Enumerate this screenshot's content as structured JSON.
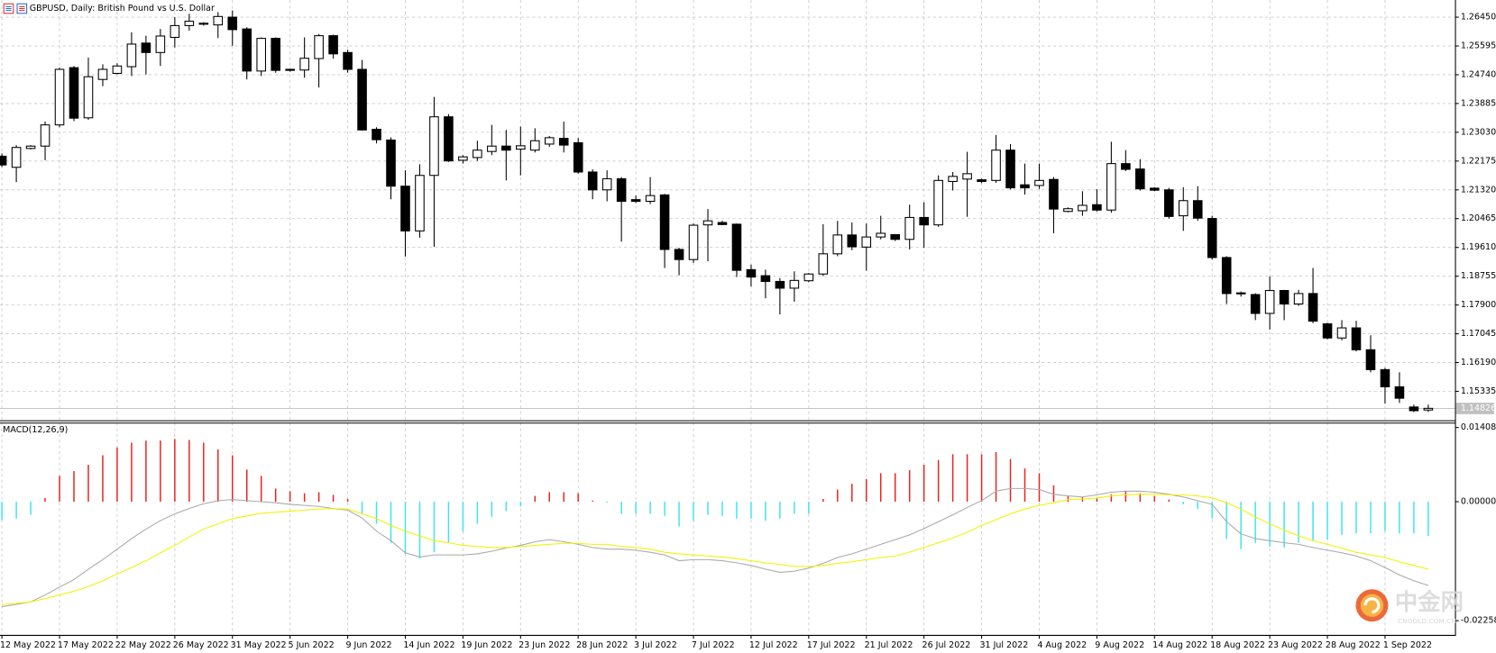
{
  "chart_data": [
    {
      "type": "candlestick",
      "title": "GBPUSD, Daily:  British Pound vs U.S. Dollar",
      "categories": [
        "12 May 2022",
        null,
        null,
        null,
        "17 May 2022",
        null,
        null,
        null,
        "22 May 2022",
        null,
        null,
        null,
        "26 May 2022",
        null,
        null,
        null,
        "31 May 2022",
        null,
        null,
        null,
        "5 Jun 2022",
        null,
        null,
        null,
        "9 Jun 2022",
        null,
        null,
        null,
        "14 Jun 2022",
        null,
        null,
        null,
        "19 Jun 2022",
        null,
        null,
        null,
        "23 Jun 2022",
        null,
        null,
        null,
        "28 Jun 2022",
        null,
        null,
        null,
        "3 Jul 2022",
        null,
        null,
        null,
        "7 Jul 2022",
        null,
        null,
        null,
        "12 Jul 2022",
        null,
        null,
        null,
        "17 Jul 2022",
        null,
        null,
        null,
        "21 Jul 2022",
        null,
        null,
        null,
        "26 Jul 2022",
        null,
        null,
        null,
        "31 Jul 2022",
        null,
        null,
        null,
        "4 Aug 2022",
        null,
        null,
        null,
        "9 Aug 2022",
        null,
        null,
        null,
        "14 Aug 2022",
        null,
        null,
        null,
        "18 Aug 2022",
        null,
        null,
        null,
        "23 Aug 2022",
        null,
        null,
        null,
        "28 Aug 2022",
        null,
        null,
        null,
        "1 Sep 2022",
        null,
        null,
        null
      ],
      "open": [
        1.2232,
        1.2199,
        1.2255,
        1.2262,
        1.2325,
        1.2495,
        1.2346,
        1.246,
        1.2478,
        1.2498,
        1.2568,
        1.254,
        1.2585,
        1.262,
        1.2624,
        1.2622,
        1.2645,
        1.261,
        1.2485,
        1.2582,
        1.249,
        1.2488,
        1.2522,
        1.259,
        1.254,
        1.249,
        1.2312,
        1.228,
        1.2143,
        1.201,
        1.2175,
        1.2349,
        1.222,
        1.2228,
        1.2246,
        1.2262,
        1.2253,
        1.225,
        1.2268,
        1.2285,
        1.2272,
        1.2185,
        1.2132,
        1.2165,
        1.2103,
        1.2098,
        1.2117,
        1.1955,
        1.1925,
        1.2028,
        1.2035,
        1.203,
        1.1895,
        1.1877,
        1.186,
        1.184,
        1.1862,
        1.1882,
        1.1942,
        1.1998,
        1.1962,
        1.1992,
        1.1999,
        1.1985,
        1.205,
        1.2028,
        1.2157,
        1.2164,
        1.2162,
        1.216,
        1.225,
        1.2147,
        1.2145,
        1.2163,
        1.2068,
        1.207,
        1.2088,
        1.2072,
        1.221,
        1.2194,
        1.2137,
        1.2132,
        1.2055,
        1.21,
        1.2047,
        1.1931,
        1.1826,
        1.1821,
        1.1765,
        1.1833,
        1.1793,
        1.1824,
        1.1734,
        1.1692,
        1.1722,
        1.1657,
        1.1598,
        1.1547,
        1.1487,
        1.1478
      ],
      "high": [
        1.224,
        1.2265,
        1.2265,
        1.2335,
        1.2495,
        1.25,
        1.2525,
        1.2505,
        1.2508,
        1.26,
        1.259,
        1.261,
        1.2645,
        1.2655,
        1.263,
        1.266,
        1.2665,
        1.2615,
        1.2585,
        1.2585,
        1.2492,
        1.2585,
        1.2595,
        1.2593,
        1.2548,
        1.2518,
        1.2318,
        1.2288,
        1.219,
        1.2208,
        1.2408,
        1.2357,
        1.2235,
        1.2278,
        1.2325,
        1.231,
        1.232,
        1.2315,
        1.2292,
        1.2335,
        1.2286,
        1.2193,
        1.219,
        1.217,
        1.2115,
        1.217,
        1.212,
        1.196,
        1.2032,
        1.2075,
        1.204,
        1.2032,
        1.191,
        1.1895,
        1.187,
        1.189,
        1.1885,
        1.203,
        1.204,
        1.2035,
        1.2032,
        1.2055,
        1.2,
        1.2088,
        1.2095,
        1.2175,
        1.2185,
        1.2245,
        1.2165,
        1.2295,
        1.2268,
        1.221,
        1.221,
        1.217,
        1.208,
        1.2128,
        1.2134,
        1.2275,
        1.225,
        1.2223,
        1.214,
        1.2138,
        1.214,
        1.2143,
        1.2055,
        1.1935,
        1.183,
        1.1825,
        1.1875,
        1.1835,
        1.1835,
        1.19,
        1.1737,
        1.1745,
        1.1743,
        1.17,
        1.1603,
        1.159,
        1.1494,
        1.1494
      ],
      "low": [
        1.22,
        1.2155,
        1.2252,
        1.222,
        1.2318,
        1.2336,
        1.234,
        1.244,
        1.2475,
        1.247,
        1.2475,
        1.25,
        1.2555,
        1.2605,
        1.262,
        1.2583,
        1.256,
        1.246,
        1.247,
        1.248,
        1.2483,
        1.2465,
        1.2436,
        1.2522,
        1.248,
        1.2308,
        1.227,
        1.2104,
        1.1934,
        1.199,
        1.1963,
        1.2215,
        1.221,
        1.2218,
        1.2235,
        1.216,
        1.2175,
        1.2243,
        1.226,
        1.2243,
        1.218,
        1.2104,
        1.2098,
        1.1978,
        1.2093,
        1.209,
        1.19,
        1.1878,
        1.1915,
        1.192,
        1.2027,
        1.1873,
        1.1845,
        1.181,
        1.1762,
        1.18,
        1.1858,
        1.1876,
        1.1935,
        1.1953,
        1.1892,
        1.1985,
        1.198,
        1.1955,
        1.196,
        1.2022,
        1.213,
        1.2052,
        1.2152,
        1.2153,
        1.2133,
        1.2118,
        1.2135,
        1.2003,
        1.2065,
        1.2055,
        1.2068,
        1.2064,
        1.2188,
        1.213,
        1.2128,
        1.2047,
        1.201,
        1.204,
        1.1925,
        1.1793,
        1.1815,
        1.1745,
        1.1717,
        1.1745,
        1.1787,
        1.1736,
        1.1688,
        1.1685,
        1.1652,
        1.159,
        1.1497,
        1.1499,
        1.1472,
        1.1472
      ],
      "close": [
        1.2206,
        1.2258,
        1.2262,
        1.2325,
        1.249,
        1.2345,
        1.2468,
        1.249,
        1.25,
        1.2565,
        1.254,
        1.2589,
        1.262,
        1.2633,
        1.2627,
        1.2647,
        1.2608,
        1.2485,
        1.2582,
        1.2487,
        1.2487,
        1.2523,
        1.259,
        1.2536,
        1.249,
        1.231,
        1.2281,
        1.2143,
        1.201,
        1.2175,
        1.2349,
        1.2218,
        1.223,
        1.225,
        1.2262,
        1.225,
        1.2263,
        1.2278,
        1.2287,
        1.2265,
        1.2185,
        1.2132,
        1.2165,
        1.2098,
        1.2098,
        1.2115,
        1.1955,
        1.1925,
        1.2027,
        1.204,
        1.2029,
        1.1893,
        1.1873,
        1.186,
        1.184,
        1.1863,
        1.1882,
        1.1942,
        1.1998,
        1.1963,
        1.1992,
        1.2003,
        1.1985,
        1.205,
        1.2028,
        1.216,
        1.2172,
        1.218,
        1.2157,
        1.225,
        1.2138,
        1.2138,
        1.216,
        1.2075,
        1.2076,
        1.2086,
        1.2072,
        1.221,
        1.2193,
        1.2135,
        1.2131,
        1.2053,
        1.21,
        1.2048,
        1.1931,
        1.1824,
        1.1823,
        1.1765,
        1.1833,
        1.1793,
        1.1824,
        1.1742,
        1.1692,
        1.1722,
        1.1657,
        1.1598,
        1.1547,
        1.1513,
        1.1476,
        1.1483
      ],
      "up_color": "#ffffff",
      "down_color": "#000000",
      "current_price": 1.14826,
      "ylim": [
        1.1449,
        1.2696
      ],
      "yticks": [
        {
          "value": 1.2645,
          "label": "1.26450"
        },
        1.25595,
        {
          "value": 1.2474,
          "label": "1.24740"
        },
        1.23885,
        {
          "value": 1.2303,
          "label": "1.23030"
        },
        1.22175,
        {
          "value": 1.2132,
          "label": "1.21320"
        },
        1.20465,
        {
          "value": 1.1961,
          "label": "1.19610"
        },
        1.18755,
        {
          "value": 1.179,
          "label": "1.17900"
        },
        1.17045,
        {
          "value": 1.1619,
          "label": "1.16190"
        },
        1.15335
      ],
      "grid": true
    },
    {
      "type": "macd",
      "title": "MACD(12,26,9)",
      "series": [
        {
          "type": "bar",
          "pos_color": "#e8231e",
          "neg_color": "#3fe3f0",
          "values": [
            -0.0035,
            -0.0032,
            -0.0025,
            0.0007,
            0.0049,
            0.0058,
            0.007,
            0.0088,
            0.0103,
            0.0112,
            0.0116,
            0.0116,
            0.0119,
            0.0117,
            0.0112,
            0.0099,
            0.0088,
            0.0061,
            0.0049,
            0.0025,
            0.002,
            0.0016,
            0.0018,
            0.0013,
            0.0005,
            -0.0023,
            -0.0042,
            -0.0078,
            -0.0099,
            -0.0108,
            -0.0096,
            -0.0078,
            -0.0056,
            -0.0042,
            -0.0029,
            -0.0018,
            -0.0009,
            0.0011,
            0.0018,
            0.0018,
            0.0016,
            0.0002,
            -0.0002,
            -0.0023,
            -0.0023,
            -0.0023,
            -0.0027,
            -0.0047,
            -0.0036,
            -0.0025,
            -0.0027,
            -0.0032,
            -0.0032,
            -0.0036,
            -0.0032,
            -0.0023,
            -0.0023,
            0.0005,
            0.0023,
            0.0034,
            0.0043,
            0.0054,
            0.0054,
            0.006,
            0.007,
            0.0079,
            0.009,
            0.009,
            0.009,
            0.0094,
            0.0081,
            0.0063,
            0.0054,
            0.0031,
            0.0011,
            0.0009,
            0.0007,
            0.0014,
            0.002,
            0.0016,
            0.0011,
            0.0004,
            -0.0005,
            -0.0014,
            -0.0032,
            -0.007,
            -0.009,
            -0.0078,
            -0.0085,
            -0.0087,
            -0.0078,
            -0.0074,
            -0.0072,
            -0.0063,
            -0.006,
            -0.006,
            -0.0056,
            -0.006,
            -0.006,
            -0.0065
          ]
        },
        {
          "type": "line",
          "color": "#a9a9a9",
          "values": [
            -0.0199,
            -0.0195,
            -0.019,
            -0.0177,
            -0.0162,
            -0.0148,
            -0.0128,
            -0.011,
            -0.009,
            -0.007,
            -0.0052,
            -0.0036,
            -0.0023,
            -0.0013,
            -0.0004,
            0.0002,
            0.0004,
            0.0002,
            0.0,
            -0.0002,
            -0.0005,
            -0.0007,
            -0.0009,
            -0.0013,
            -0.0016,
            -0.0031,
            -0.0056,
            -0.0074,
            -0.0097,
            -0.0105,
            -0.0101,
            -0.0101,
            -0.0101,
            -0.0099,
            -0.0094,
            -0.0088,
            -0.0083,
            -0.0076,
            -0.0072,
            -0.0076,
            -0.0081,
            -0.0087,
            -0.009,
            -0.009,
            -0.0092,
            -0.0096,
            -0.0101,
            -0.0112,
            -0.011,
            -0.011,
            -0.0112,
            -0.0116,
            -0.0121,
            -0.0128,
            -0.0134,
            -0.0132,
            -0.0126,
            -0.0117,
            -0.0106,
            -0.0099,
            -0.009,
            -0.0081,
            -0.0072,
            -0.0063,
            -0.0051,
            -0.0038,
            -0.0025,
            -0.0011,
            0.0002,
            0.002,
            0.0025,
            0.0025,
            0.0023,
            0.0014,
            0.0011,
            0.0009,
            0.0013,
            0.0018,
            0.002,
            0.002,
            0.0018,
            0.0014,
            0.0009,
            0.0002,
            -0.0005,
            -0.0038,
            -0.0061,
            -0.007,
            -0.0074,
            -0.0078,
            -0.0081,
            -0.0087,
            -0.0092,
            -0.0097,
            -0.0103,
            -0.0112,
            -0.0125,
            -0.0139,
            -0.015,
            -0.0159
          ]
        },
        {
          "type": "line",
          "color": "#f2f200",
          "values": [
            -0.0195,
            -0.0193,
            -0.019,
            -0.0184,
            -0.0177,
            -0.017,
            -0.0161,
            -0.015,
            -0.0137,
            -0.0125,
            -0.0112,
            -0.0097,
            -0.0083,
            -0.0067,
            -0.0052,
            -0.0042,
            -0.0032,
            -0.0027,
            -0.0022,
            -0.002,
            -0.0018,
            -0.0016,
            -0.0014,
            -0.0013,
            -0.0014,
            -0.0023,
            -0.0032,
            -0.0045,
            -0.0056,
            -0.0065,
            -0.0074,
            -0.0078,
            -0.0083,
            -0.0085,
            -0.0087,
            -0.0087,
            -0.0085,
            -0.0083,
            -0.0081,
            -0.0079,
            -0.0079,
            -0.0081,
            -0.0081,
            -0.0085,
            -0.0087,
            -0.009,
            -0.0096,
            -0.0099,
            -0.0101,
            -0.0103,
            -0.0105,
            -0.0108,
            -0.0112,
            -0.0116,
            -0.0119,
            -0.0123,
            -0.0123,
            -0.0121,
            -0.0117,
            -0.0114,
            -0.011,
            -0.0106,
            -0.0103,
            -0.0096,
            -0.0087,
            -0.0078,
            -0.0069,
            -0.0058,
            -0.0045,
            -0.0034,
            -0.0023,
            -0.0014,
            -0.0007,
            -0.0002,
            0.0004,
            0.0005,
            0.0007,
            0.0011,
            0.0013,
            0.0014,
            0.0014,
            0.0013,
            0.0013,
            0.0011,
            0.0007,
            -0.0002,
            -0.0014,
            -0.0029,
            -0.0042,
            -0.0054,
            -0.0065,
            -0.0074,
            -0.0081,
            -0.0088,
            -0.0096,
            -0.0101,
            -0.0106,
            -0.0114,
            -0.0121,
            -0.0128
          ]
        }
      ],
      "ylim": [
        -0.0251,
        0.015
      ],
      "yticks": [
        0.01408,
        {
          "value": 0,
          "label": "0.00000"
        },
        -0.02258
      ],
      "grid": true
    }
  ],
  "watermark": {
    "brand": "中金网",
    "site": "CNGOLD.COM.CN"
  }
}
